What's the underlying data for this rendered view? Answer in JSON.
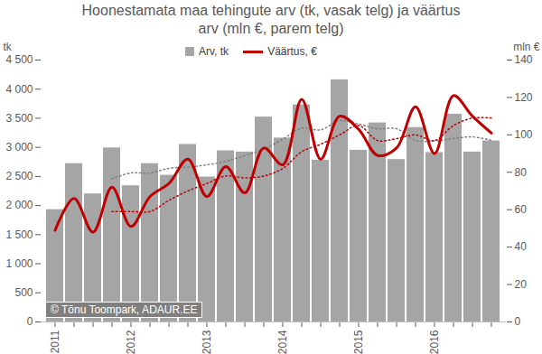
{
  "chart_data": {
    "type": "bar",
    "title": "Hoonestamata maa tehingute arv (tk, vasak telg) ja väärtus arv (mln €, parem telg)",
    "y_label": "tk",
    "y2_label": "mln €",
    "categories": [
      "2011",
      null,
      null,
      null,
      "2012",
      null,
      null,
      null,
      "2013",
      null,
      null,
      null,
      "2014",
      null,
      null,
      null,
      "2015",
      null,
      null,
      null,
      "2016",
      null,
      null,
      null
    ],
    "series": [
      {
        "name": "Arv, tk",
        "type": "bar",
        "color": "#a5a5a5",
        "values": [
          1930,
          2720,
          2200,
          2990,
          2340,
          2720,
          2520,
          3050,
          2490,
          2940,
          2920,
          3520,
          3160,
          3730,
          2780,
          4160,
          2950,
          3420,
          2790,
          3340,
          2910,
          3570,
          2920,
          3110
        ]
      },
      {
        "name": "Väärtus, €",
        "type": "line",
        "color": "#c00000",
        "axis": "y2",
        "values": [
          49,
          66,
          48,
          72,
          51,
          67,
          74,
          87,
          67,
          83,
          69,
          93,
          84,
          119,
          87,
          110,
          103,
          89,
          93,
          115,
          90,
          121,
          110,
          101
        ]
      },
      {
        "type": "line",
        "line_style": "dotted",
        "color": "#7f7f7f",
        "values": [
          null,
          null,
          null,
          2460,
          2560,
          2560,
          2640,
          2660,
          2700,
          2760,
          2860,
          2970,
          3140,
          3330,
          3300,
          3460,
          3400,
          3320,
          3320,
          3120,
          3110,
          3150,
          3180,
          3120
        ]
      },
      {
        "type": "line",
        "line_style": "dotted",
        "color": "#c00000",
        "axis": "y2",
        "values": [
          null,
          null,
          null,
          59,
          59,
          59,
          65,
          70,
          74,
          78,
          77,
          78,
          82,
          91,
          95,
          100,
          105,
          97,
          98,
          100,
          97,
          105,
          109,
          109
        ]
      }
    ],
    "ylim": [
      0,
      4500
    ],
    "yticks": [
      0,
      500,
      {
        "value": 1000,
        "label": "1 000"
      },
      {
        "value": 1500,
        "label": "1 500"
      },
      {
        "value": 2000,
        "label": "2 000"
      },
      {
        "value": 2500,
        "label": "2 500"
      },
      {
        "value": 3000,
        "label": "3 000"
      },
      {
        "value": 3500,
        "label": "3 500"
      },
      {
        "value": 4000,
        "label": "4 000"
      },
      {
        "value": 4500,
        "label": "4 500"
      }
    ],
    "y2lim": [
      0,
      140
    ],
    "y2ticks": [
      0,
      20,
      40,
      60,
      80,
      100,
      120,
      140
    ],
    "grid": false,
    "legend": "top",
    "annotations": [
      {
        "text": "© Tõnu Toompark, ADAUR.EE"
      }
    ]
  }
}
